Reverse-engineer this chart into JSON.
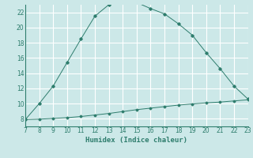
{
  "title": "",
  "xlabel": "Humidex (Indice chaleur)",
  "xlim": [
    7,
    23
  ],
  "ylim": [
    7,
    23
  ],
  "xticks": [
    7,
    8,
    9,
    10,
    11,
    12,
    13,
    14,
    15,
    16,
    17,
    18,
    19,
    20,
    21,
    22,
    23
  ],
  "yticks": [
    8,
    10,
    12,
    14,
    16,
    18,
    20,
    22
  ],
  "background_color": "#cce8e8",
  "grid_color": "#ffffff",
  "line_color": "#2e7d6d",
  "curve1_x": [
    7,
    8,
    9,
    10,
    11,
    12,
    13,
    14,
    15,
    16,
    17,
    18,
    19,
    20,
    21,
    22,
    23
  ],
  "curve1_y": [
    7.9,
    7.95,
    8.05,
    8.15,
    8.3,
    8.5,
    8.7,
    8.95,
    9.2,
    9.4,
    9.6,
    9.8,
    9.95,
    10.1,
    10.2,
    10.35,
    10.5
  ],
  "curve2_x": [
    7,
    8,
    9,
    10,
    11,
    12,
    13,
    14,
    15,
    16,
    17,
    18,
    19,
    20,
    21,
    22,
    23
  ],
  "curve2_y": [
    7.9,
    10.0,
    12.3,
    15.4,
    18.5,
    21.5,
    23.0,
    23.4,
    23.3,
    22.5,
    21.8,
    20.5,
    19.0,
    16.7,
    14.6,
    12.3,
    10.6
  ]
}
